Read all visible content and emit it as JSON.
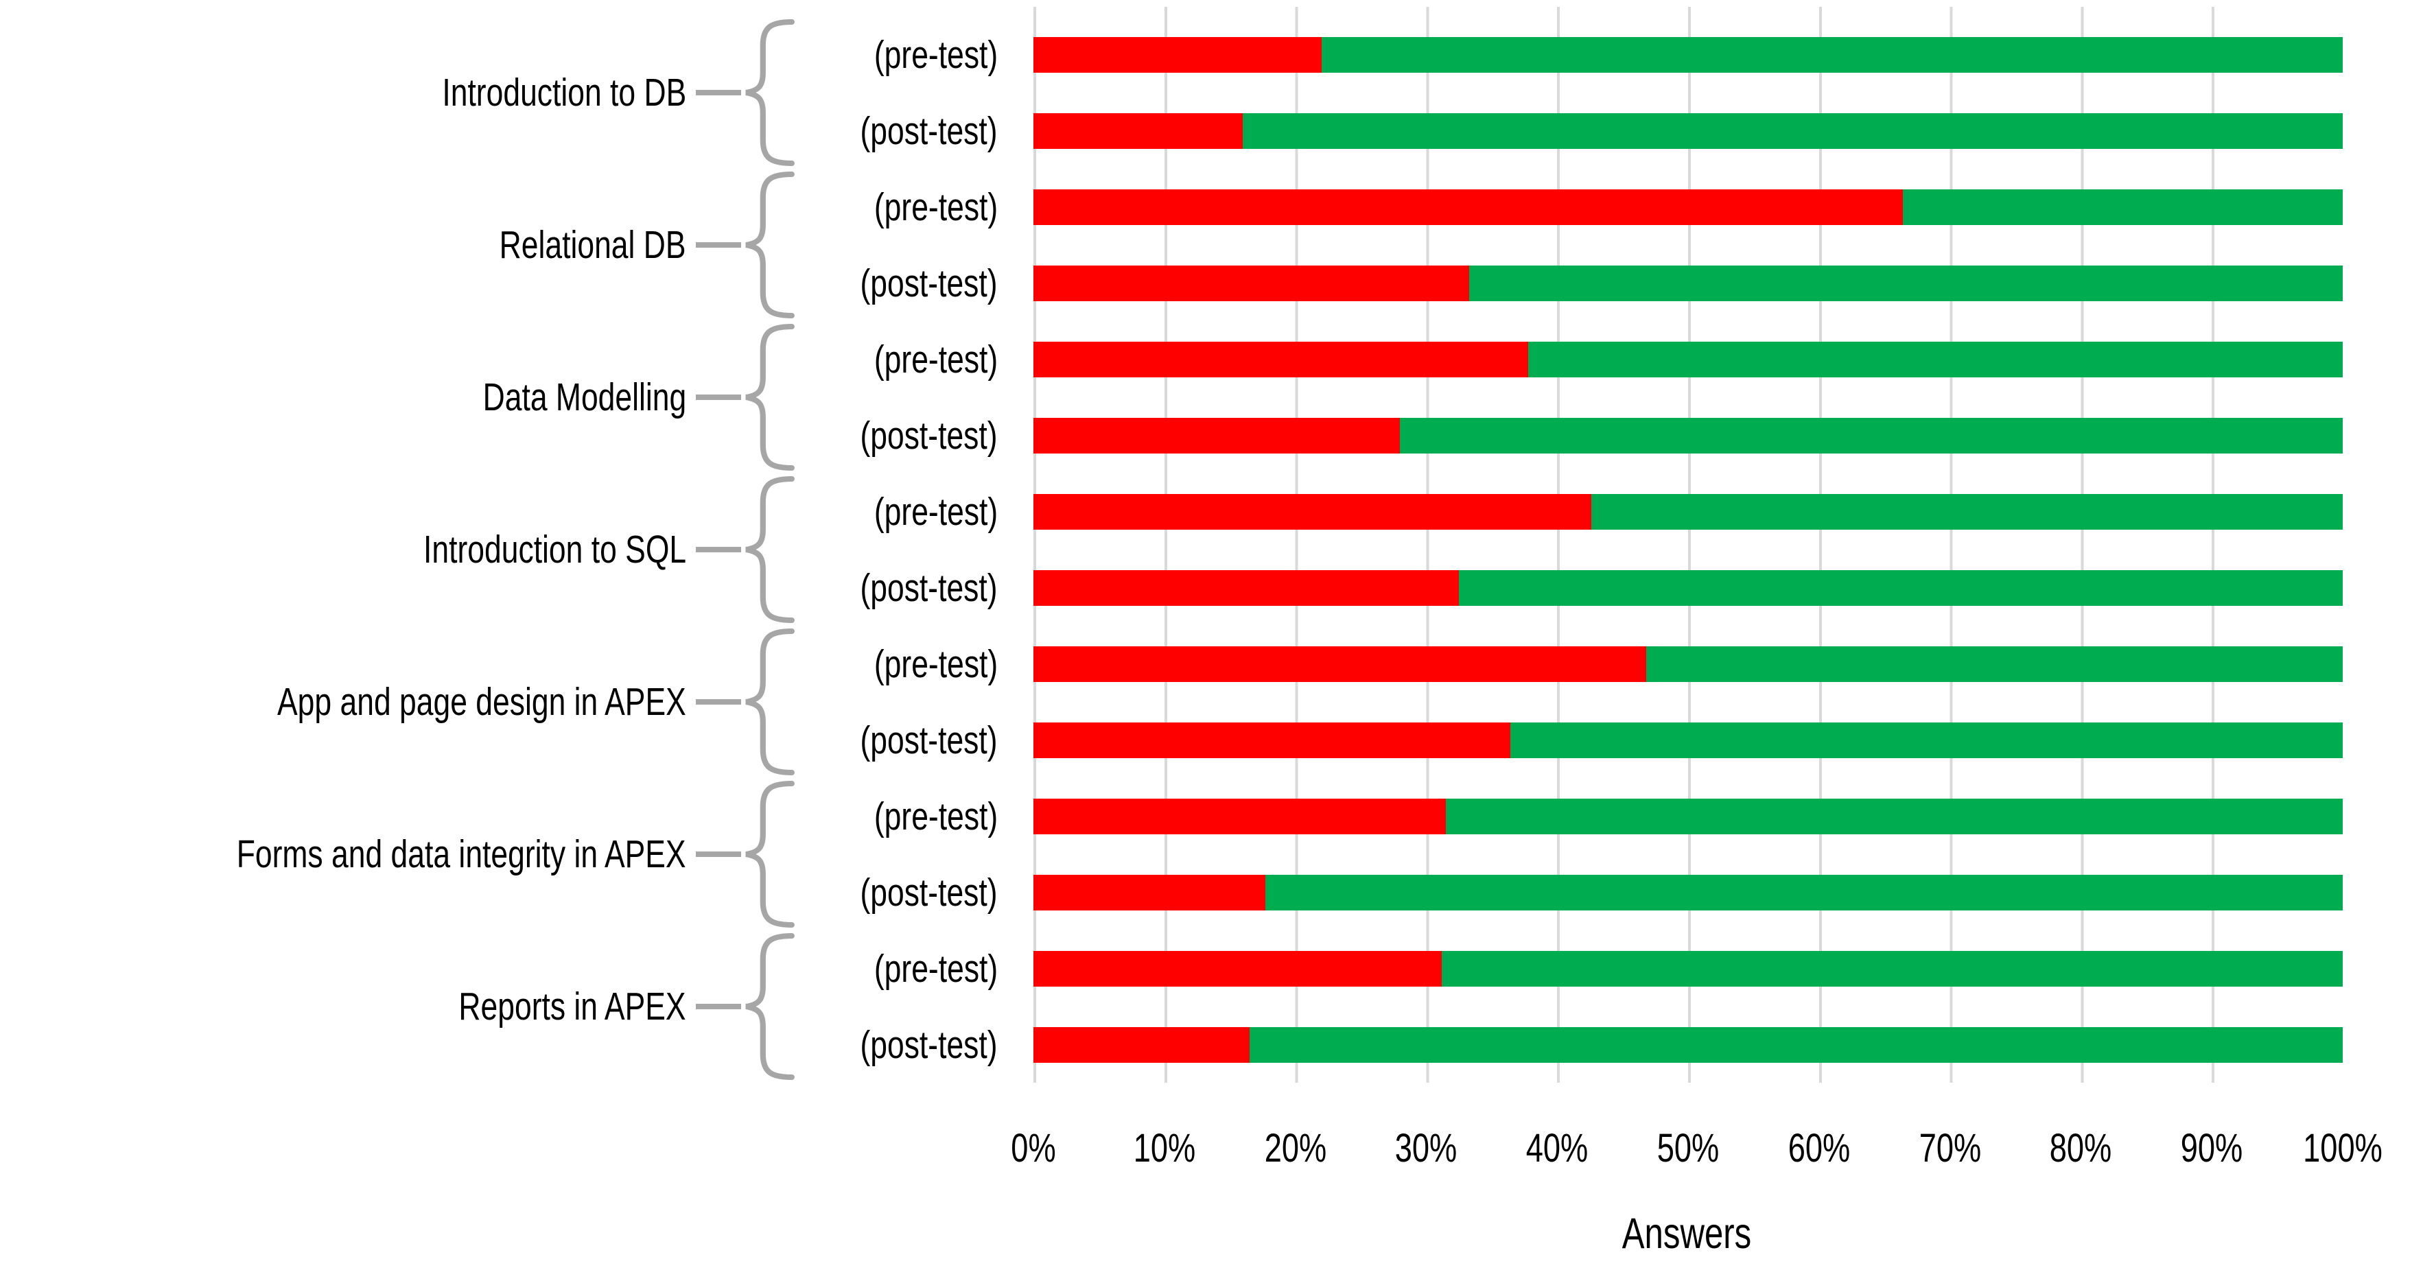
{
  "chart_data": {
    "type": "bar",
    "orientation": "horizontal",
    "stacked": true,
    "title": "",
    "xlabel": "Answers",
    "ylabel": "",
    "x_range": [
      0,
      100
    ],
    "x_ticks": [
      "0%",
      "10%",
      "20%",
      "30%",
      "40%",
      "50%",
      "60%",
      "70%",
      "80%",
      "90%",
      "100%"
    ],
    "gridlines": {
      "interval_pct": 10,
      "color": "#d9d9d9"
    },
    "legend": "none",
    "series_meaning": {
      "red": "incorrect answers share",
      "green": "remainder to 100%"
    },
    "groups": [
      {
        "topic": "Introduction to DB",
        "bars": [
          {
            "label": "(pre-test)",
            "red_pct": 22.0,
            "green_pct": 78.0
          },
          {
            "label": "(post-test)",
            "red_pct": 16.0,
            "green_pct": 84.0
          }
        ]
      },
      {
        "topic": "Relational DB",
        "bars": [
          {
            "label": "(pre-test)",
            "red_pct": 66.4,
            "green_pct": 33.6
          },
          {
            "label": "(post-test)",
            "red_pct": 33.3,
            "green_pct": 66.7
          }
        ]
      },
      {
        "topic": "Data Modelling",
        "bars": [
          {
            "label": "(pre-test)",
            "red_pct": 37.8,
            "green_pct": 62.2
          },
          {
            "label": "(post-test)",
            "red_pct": 28.0,
            "green_pct": 72.0
          }
        ]
      },
      {
        "topic": "Introduction to SQL",
        "bars": [
          {
            "label": "(pre-test)",
            "red_pct": 42.6,
            "green_pct": 57.4
          },
          {
            "label": "(post-test)",
            "red_pct": 32.5,
            "green_pct": 67.5
          }
        ]
      },
      {
        "topic": "App and page design in APEX",
        "bars": [
          {
            "label": "(pre-test)",
            "red_pct": 46.8,
            "green_pct": 53.2
          },
          {
            "label": "(post-test)",
            "red_pct": 36.4,
            "green_pct": 63.6
          }
        ]
      },
      {
        "topic": "Forms and data integrity in APEX",
        "bars": [
          {
            "label": "(pre-test)",
            "red_pct": 31.5,
            "green_pct": 68.5
          },
          {
            "label": "(post-test)",
            "red_pct": 17.7,
            "green_pct": 82.3
          }
        ]
      },
      {
        "topic": "Reports in APEX",
        "bars": [
          {
            "label": "(pre-test)",
            "red_pct": 31.2,
            "green_pct": 68.8
          },
          {
            "label": "(post-test)",
            "red_pct": 16.5,
            "green_pct": 83.5
          }
        ]
      }
    ]
  },
  "colors": {
    "red_segment": "#fe0000",
    "green_segment": "#00ac50",
    "gridline": "#d9d9d9",
    "brace": "#a6a6a6",
    "text": "#000000"
  }
}
